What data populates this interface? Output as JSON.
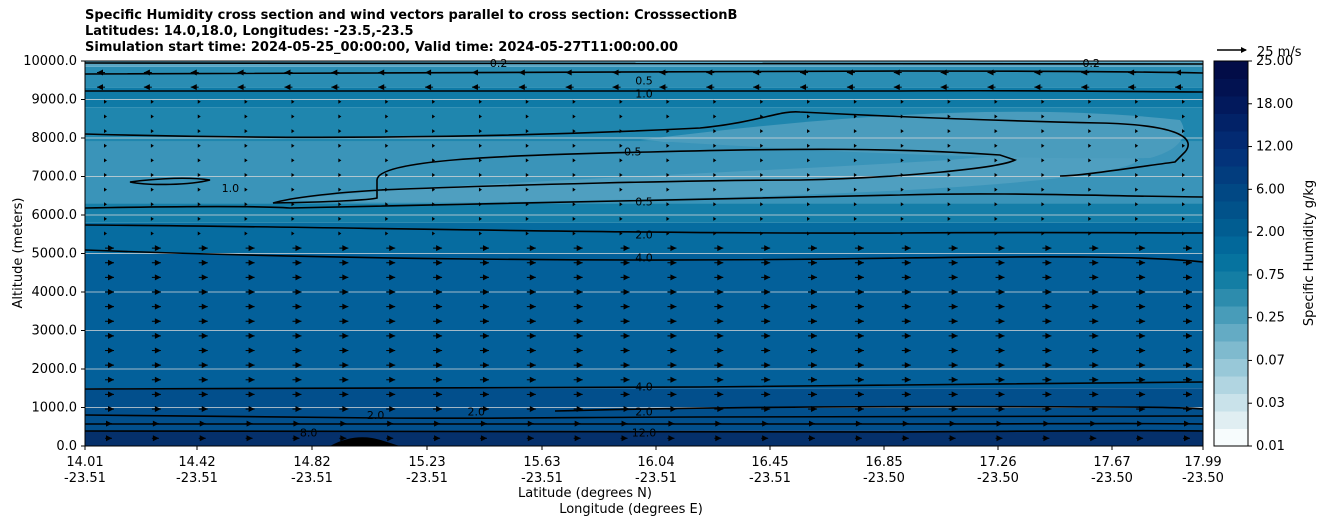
{
  "chart_data": {
    "type": "heatmap",
    "title_lines": [
      "Specific Humidity cross section and wind vectors parallel to cross section: CrosssectionB",
      "Latitudes: 14.0,18.0, Longitudes: -23.5,-23.5",
      "Simulation start time: 2024-05-25_00:00:00, Valid time: 2024-05-27T11:00:00.00"
    ],
    "ylabel": "Altitude (meters)",
    "xlabel_lines": [
      "Latitude (degrees N)",
      "Longitude (degrees E)"
    ],
    "ylim": [
      0,
      10000
    ],
    "y_ticks": [
      {
        "value": 0,
        "label": "0.0"
      },
      {
        "value": 1000,
        "label": "1000.0"
      },
      {
        "value": 2000,
        "label": "2000.0"
      },
      {
        "value": 3000,
        "label": "3000.0"
      },
      {
        "value": 4000,
        "label": "4000.0"
      },
      {
        "value": 5000,
        "label": "5000.0"
      },
      {
        "value": 6000,
        "label": "6000.0"
      },
      {
        "value": 7000,
        "label": "7000.0"
      },
      {
        "value": 8000,
        "label": "8000.0"
      },
      {
        "value": 9000,
        "label": "9000.0"
      },
      {
        "value": 10000,
        "label": "10000.0"
      }
    ],
    "x_ticks": [
      {
        "lat": "14.01",
        "lon": "-23.51"
      },
      {
        "lat": "14.42",
        "lon": "-23.51"
      },
      {
        "lat": "14.82",
        "lon": "-23.51"
      },
      {
        "lat": "15.23",
        "lon": "-23.51"
      },
      {
        "lat": "15.63",
        "lon": "-23.51"
      },
      {
        "lat": "16.04",
        "lon": "-23.51"
      },
      {
        "lat": "16.45",
        "lon": "-23.51"
      },
      {
        "lat": "16.85",
        "lon": "-23.50"
      },
      {
        "lat": "17.26",
        "lon": "-23.50"
      },
      {
        "lat": "17.67",
        "lon": "-23.50"
      },
      {
        "lat": "17.99",
        "lon": "-23.50"
      }
    ],
    "colorbar": {
      "label": "Specific Humidity g/kg",
      "tick_labels": [
        "0.01",
        "0.03",
        "0.07",
        "0.25",
        "0.75",
        "2.00",
        "6.00",
        "12.00",
        "18.00",
        "25.00"
      ],
      "colors": [
        "#f7fcfd",
        "#e0eef2",
        "#c9e2ea",
        "#b1d5e1",
        "#98c8d8",
        "#7fbace",
        "#64abc4",
        "#489cb9",
        "#2d8cad",
        "#147ea4",
        "#06739f",
        "#02689a",
        "#015d91",
        "#01528a",
        "#014884",
        "#023d7e",
        "#03337a",
        "#032a72",
        "#022267",
        "#02195c",
        "#021251",
        "#020c47"
      ]
    },
    "wind_reference": {
      "label": "25 m/s",
      "value_ms": 25
    },
    "grid": true,
    "contour_labels": [
      {
        "text": "0.5",
        "lat_frac": 0.5,
        "alt": 9500
      },
      {
        "text": "1.0",
        "lat_frac": 0.5,
        "alt": 9150
      },
      {
        "text": "0.5",
        "lat_frac": 0.49,
        "alt": 7650
      },
      {
        "text": "0.5",
        "lat_frac": 0.5,
        "alt": 6350
      },
      {
        "text": "1.0",
        "lat_frac": 0.13,
        "alt": 6700
      },
      {
        "text": "2.0",
        "lat_frac": 0.5,
        "alt": 5500
      },
      {
        "text": "4.0",
        "lat_frac": 0.5,
        "alt": 4900
      },
      {
        "text": "4.0",
        "lat_frac": 0.5,
        "alt": 1550
      },
      {
        "text": "2.0",
        "lat_frac": 0.5,
        "alt": 900
      },
      {
        "text": "8.0",
        "lat_frac": 0.2,
        "alt": 350
      },
      {
        "text": "2.0",
        "lat_frac": 0.35,
        "alt": 900
      },
      {
        "text": "2.0",
        "lat_frac": 0.26,
        "alt": 800
      },
      {
        "text": "12.0",
        "lat_frac": 0.5,
        "alt": 350
      },
      {
        "text": "0.2",
        "lat_frac": 0.37,
        "alt": 9950
      },
      {
        "text": "0.2",
        "lat_frac": 0.9,
        "alt": 9950
      }
    ]
  }
}
